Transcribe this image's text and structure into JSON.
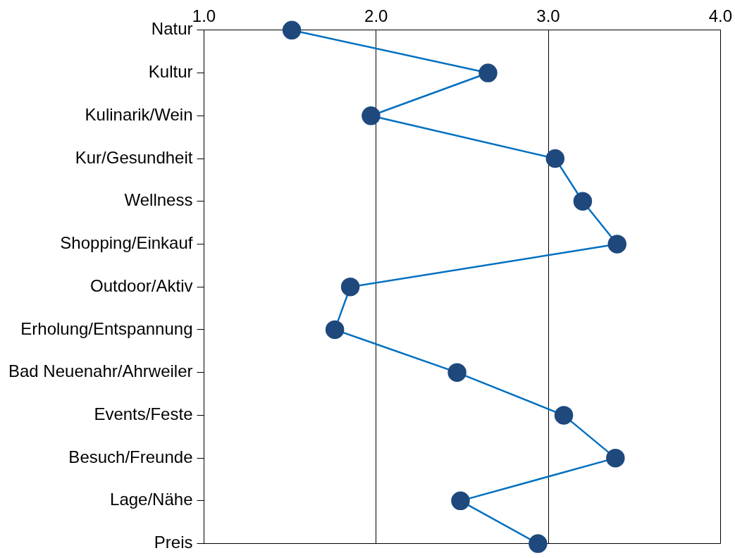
{
  "chart_data": {
    "type": "line",
    "orientation": "horizontal",
    "categories": [
      "Natur",
      "Kultur",
      "Kulinarik/Wein",
      "Kur/Gesundheit",
      "Wellness",
      "Shopping/Einkauf",
      "Outdoor/Aktiv",
      "Erholung/Entspannung",
      "Bad Neuenahr/Ahrweiler",
      "Events/Feste",
      "Besuch/Freunde",
      "Lage/Nähe",
      "Preis"
    ],
    "series": [
      {
        "color": "#0070c0",
        "colors": [
          "#1f497d",
          "#1f497d",
          "#1f497d",
          "#1f497d",
          "#1f497d",
          "#1f497d",
          "#1f497d",
          "#1f497d",
          "#1f497d",
          "#1f497d",
          "#1f497d",
          "#1f497d",
          "#1f497d"
        ],
        "values": [
          1.51,
          2.65,
          1.97,
          3.04,
          3.2,
          3.4,
          1.85,
          1.76,
          2.47,
          3.09,
          3.39,
          2.49,
          2.94
        ]
      }
    ],
    "xlim": [
      1,
      4
    ],
    "xticks": [
      {
        "value": 1,
        "label": "1.0"
      },
      {
        "value": 2,
        "label": "2.0"
      },
      {
        "value": 3,
        "label": "3.0"
      },
      {
        "value": 4,
        "label": "4.0"
      }
    ],
    "grid": "x",
    "marker": "circle",
    "line_style": "solid",
    "legend": false
  }
}
